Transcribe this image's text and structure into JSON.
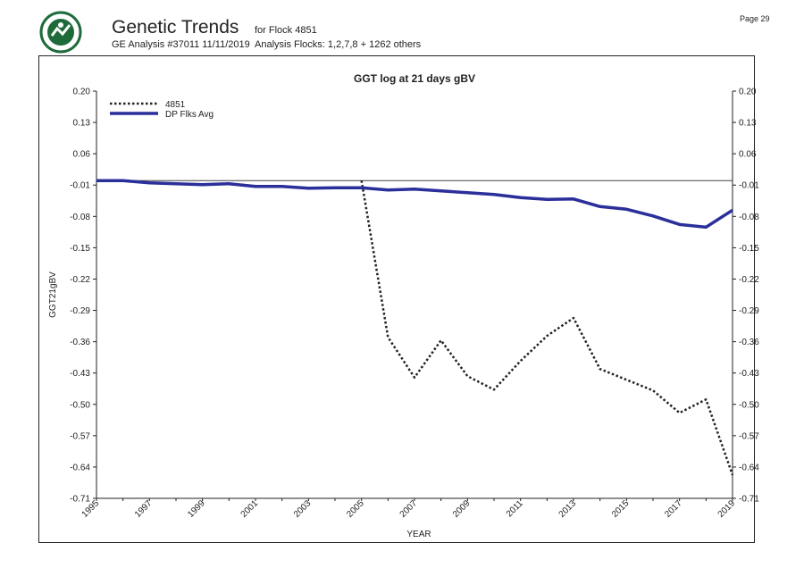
{
  "header": {
    "title": "Genetic Trends",
    "for_flock": "for Flock 4851",
    "analysis": "GE Analysis #37011 11/11/2019",
    "analysis_flocks": "Analysis Flocks: 1,2,7,8 + 1262 others",
    "page": "Page 29",
    "logo": "SIL-logo",
    "logo_color": "#1e6b3a"
  },
  "chart_data": {
    "type": "line",
    "title": "GGT log at 21 days gBV",
    "xlabel": "YEAR",
    "ylabel": "GGT21gBV",
    "xlim": [
      1995,
      2019
    ],
    "ylim": [
      -0.71,
      0.2
    ],
    "x_ticks": [
      "1995",
      "1997",
      "1999",
      "2001",
      "2003",
      "2005",
      "2007",
      "2009",
      "2011",
      "2013",
      "2015",
      "2017",
      "2019"
    ],
    "y_ticks": [
      "0.20",
      "0.13",
      "0.06",
      "-0.01",
      "-0.08",
      "-0.15",
      "-0.22",
      "-0.29",
      "-0.36",
      "-0.43",
      "-0.50",
      "-0.57",
      "-0.64",
      "-0.71"
    ],
    "reference_line": 0.0,
    "grid": false,
    "legend_position": "top-left",
    "series": [
      {
        "name": "4851",
        "style": "dotted",
        "color": "#222222",
        "x": [
          2005,
          2006,
          2007,
          2008,
          2009,
          2010,
          2011,
          2012,
          2013,
          2014,
          2015,
          2016,
          2017,
          2018,
          2019
        ],
        "values": [
          0.0,
          -0.35,
          -0.44,
          -0.357,
          -0.437,
          -0.467,
          -0.403,
          -0.347,
          -0.307,
          -0.421,
          -0.445,
          -0.469,
          -0.519,
          -0.489,
          -0.658
        ]
      },
      {
        "name": "DP Flks Avg",
        "style": "solid",
        "color": "#2a2f9a",
        "x": [
          1995,
          1996,
          1997,
          1998,
          1999,
          2000,
          2001,
          2002,
          2003,
          2004,
          2005,
          2006,
          2007,
          2008,
          2009,
          2010,
          2011,
          2012,
          2013,
          2014,
          2015,
          2016,
          2017,
          2018,
          2019
        ],
        "values": [
          0.0,
          0.0,
          -0.005,
          -0.007,
          -0.009,
          -0.007,
          -0.013,
          -0.013,
          -0.017,
          -0.016,
          -0.016,
          -0.021,
          -0.019,
          -0.023,
          -0.027,
          -0.031,
          -0.038,
          -0.042,
          -0.041,
          -0.058,
          -0.064,
          -0.079,
          -0.098,
          -0.104,
          -0.066
        ]
      }
    ]
  }
}
